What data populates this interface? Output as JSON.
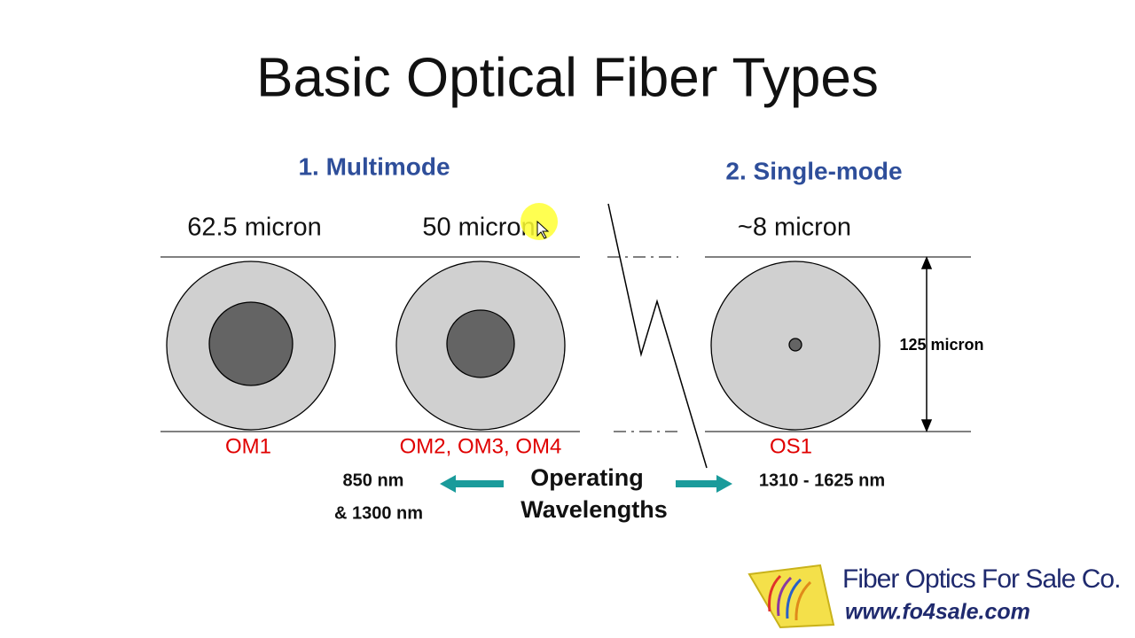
{
  "title": "Basic Optical Fiber Types",
  "sections": [
    {
      "heading": "1. Multimode",
      "fibers": [
        {
          "core": "62.5 micron",
          "grades": "OM1"
        },
        {
          "core": "50 micron",
          "grades": "OM2, OM3, OM4"
        }
      ],
      "wavelengths": [
        "850 nm",
        "& 1300 nm"
      ]
    },
    {
      "heading": "2. Single-mode",
      "fibers": [
        {
          "core": "~8 micron",
          "grades": "OS1"
        }
      ],
      "wavelengths": [
        "1310 - 1625 nm"
      ]
    }
  ],
  "cladding": "125 micron",
  "wavelength_label": [
    "Operating",
    "Wavelengths"
  ],
  "logo": {
    "name": "Fiber Optics For Sale Co.",
    "url": "www.fo4sale.com"
  }
}
